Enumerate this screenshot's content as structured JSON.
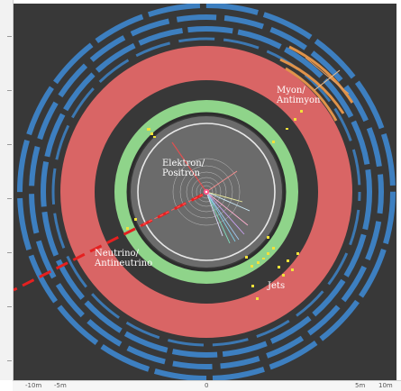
{
  "labels": {
    "muon": [
      "Myon/",
      "Antimyon"
    ],
    "electron": [
      "Elektron/",
      "Positron"
    ],
    "neutrino": [
      "Neutrino/",
      "Antineutrino"
    ],
    "jets": "Jets"
  },
  "axis": {
    "neg10": "-10m",
    "neg5": "-5m",
    "zero": "0",
    "pos5": "5m",
    "pos10": "10m"
  },
  "colors": {
    "background": "#383838",
    "muon_chambers": "#3d7fc0",
    "hadronic_calorimeter": "#d96565",
    "electromagnetic_calorimeter": "#8fd48a",
    "tracker": "#6b6b6b",
    "muon_track": "#e0934a",
    "neutrino_missing_energy": "#e52020",
    "energy_deposits": "#f2e23a"
  }
}
